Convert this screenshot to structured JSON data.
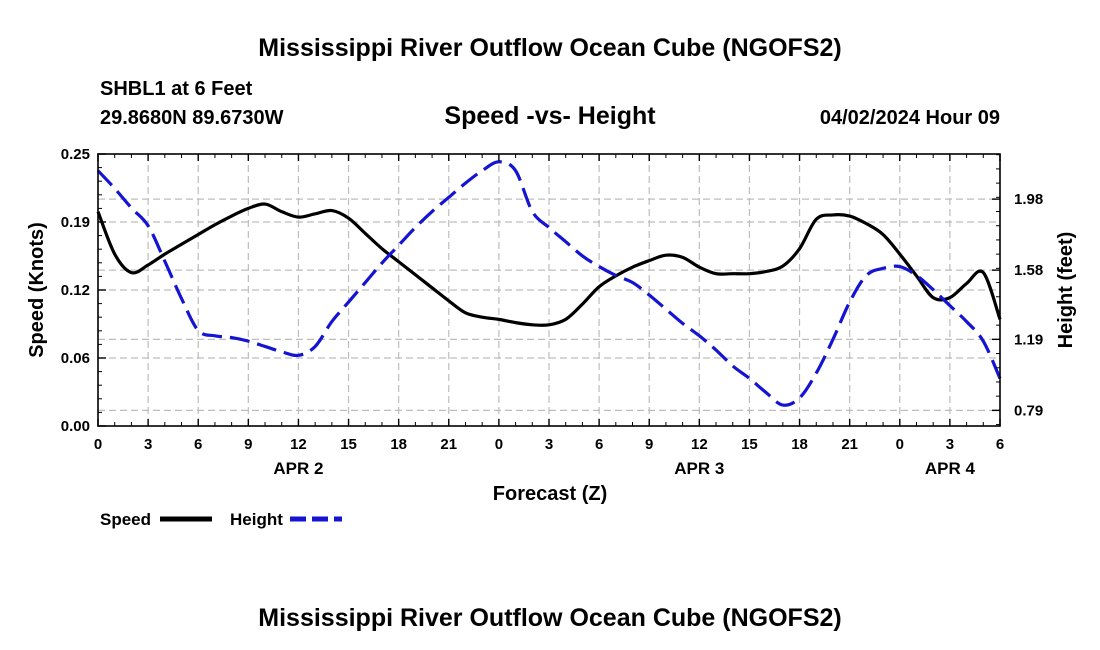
{
  "chart_data": {
    "type": "line",
    "title": "Mississippi River Outflow Ocean Cube (NGOFS2)",
    "footer_title": "Mississippi River Outflow Ocean Cube (NGOFS2)",
    "station": "SHBL1 at 6 Feet",
    "coordinates": "29.8680N  89.6730W",
    "subtitle": "Speed -vs- Height",
    "datetime": "04/02/2024 Hour 09",
    "xlabel": "Forecast (Z)",
    "ylabel_left": "Speed (Knots)",
    "ylabel_right": "Height (feet)",
    "x_hours_range": [
      0,
      54
    ],
    "x_tick_hours": [
      0,
      3,
      6,
      9,
      12,
      15,
      18,
      21,
      24,
      27,
      30,
      33,
      36,
      39,
      42,
      45,
      48,
      51,
      54
    ],
    "x_tick_labels": [
      "0",
      "3",
      "6",
      "9",
      "12",
      "15",
      "18",
      "21",
      "0",
      "3",
      "6",
      "9",
      "12",
      "15",
      "18",
      "21",
      "0",
      "3",
      "6"
    ],
    "date_labels": [
      {
        "label": "APR 2",
        "hour": 12
      },
      {
        "label": "APR 3",
        "hour": 36
      },
      {
        "label": "APR 4",
        "hour": 51
      }
    ],
    "ylim_left": [
      0,
      0.25
    ],
    "yticks_left": [
      "0.00",
      "0.06",
      "0.12",
      "0.19",
      "0.25"
    ],
    "yticks_left_values": [
      0,
      0.0625,
      0.125,
      0.1875,
      0.25
    ],
    "ylim_right": [
      0.702,
      2.234
    ],
    "yticks_right": [
      "0.79",
      "1.19",
      "1.58",
      "1.98"
    ],
    "yticks_right_values": [
      0.79,
      1.19,
      1.58,
      1.98
    ],
    "grid": true,
    "series": [
      {
        "name": "Speed",
        "axis": "left",
        "color": "#000000",
        "dash": "solid",
        "x": [
          0,
          1,
          2,
          3,
          4,
          5,
          6,
          7,
          8,
          9,
          10,
          11,
          12,
          13,
          14,
          15,
          16,
          17,
          18,
          19,
          20,
          21,
          22,
          23,
          24,
          25,
          26,
          27,
          28,
          29,
          30,
          31,
          32,
          33,
          34,
          35,
          36,
          37,
          38,
          39,
          40,
          41,
          42,
          43,
          44,
          45,
          46,
          47,
          48,
          49,
          50,
          51,
          52,
          53,
          54
        ],
        "values": [
          0.197,
          0.158,
          0.141,
          0.148,
          0.158,
          0.167,
          0.176,
          0.185,
          0.193,
          0.2,
          0.204,
          0.197,
          0.192,
          0.195,
          0.198,
          0.191,
          0.177,
          0.163,
          0.151,
          0.139,
          0.127,
          0.115,
          0.104,
          0.1,
          0.098,
          0.095,
          0.093,
          0.093,
          0.098,
          0.112,
          0.128,
          0.138,
          0.146,
          0.152,
          0.157,
          0.155,
          0.146,
          0.14,
          0.14,
          0.14,
          0.142,
          0.147,
          0.163,
          0.19,
          0.194,
          0.193,
          0.186,
          0.176,
          0.158,
          0.138,
          0.118,
          0.118,
          0.131,
          0.141,
          0.098
        ],
        "smooth_ticks_hint": "smooth"
      },
      {
        "name": "Height",
        "axis": "right",
        "color": "#1414d2",
        "dash": "dashed",
        "x": [
          0,
          1,
          2,
          3,
          4,
          5,
          6,
          7,
          8,
          9,
          10,
          11,
          12,
          13,
          14,
          15,
          16,
          17,
          18,
          19,
          20,
          21,
          22,
          23,
          24,
          25,
          26,
          27,
          28,
          29,
          30,
          31,
          32,
          33,
          34,
          35,
          36,
          37,
          38,
          39,
          40,
          41,
          42,
          43,
          44,
          45,
          46,
          47,
          48,
          49,
          50,
          51,
          52,
          53,
          54
        ],
        "values": [
          2.14,
          2.04,
          1.93,
          1.83,
          1.63,
          1.42,
          1.24,
          1.21,
          1.2,
          1.18,
          1.15,
          1.12,
          1.1,
          1.15,
          1.29,
          1.4,
          1.51,
          1.62,
          1.72,
          1.82,
          1.91,
          1.99,
          2.07,
          2.14,
          2.19,
          2.14,
          1.91,
          1.82,
          1.74,
          1.66,
          1.6,
          1.55,
          1.51,
          1.44,
          1.36,
          1.28,
          1.21,
          1.13,
          1.04,
          0.97,
          0.89,
          0.82,
          0.86,
          1.0,
          1.19,
          1.4,
          1.55,
          1.59,
          1.6,
          1.55,
          1.47,
          1.38,
          1.29,
          1.18,
          0.97
        ]
      }
    ],
    "legend": [
      {
        "label": "Speed",
        "color": "#000000",
        "dash": "solid"
      },
      {
        "label": "Height",
        "color": "#1414d2",
        "dash": "dashed"
      }
    ]
  }
}
